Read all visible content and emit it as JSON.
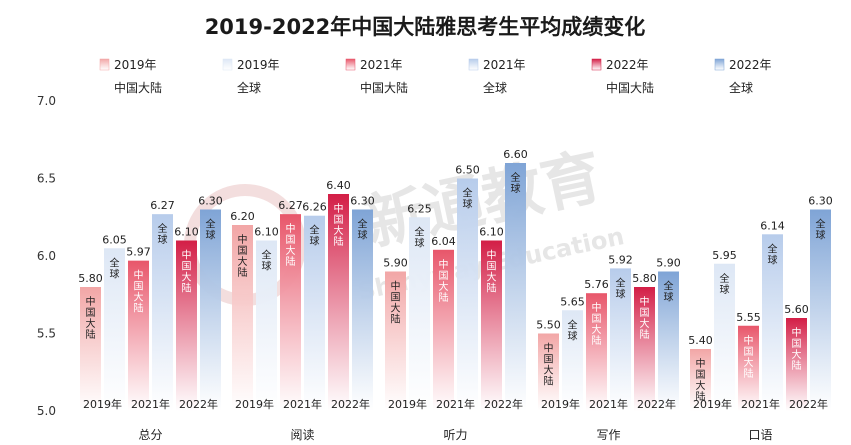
{
  "chart_data": {
    "type": "bar",
    "title": "2019-2022年中国大陆雅思考生平均成绩变化",
    "categories": [
      "总分",
      "阅读",
      "听力",
      "写作",
      "口语"
    ],
    "year_labels": [
      "2019年",
      "2021年",
      "2022年"
    ],
    "series": [
      {
        "name": "2019年 中国大陆",
        "legend_year": "2019年",
        "legend_region": "中国大陆",
        "bar_label": "中国大陆",
        "year": "2019年",
        "group": "china",
        "color": "#f2a6a6",
        "values": [
          5.8,
          6.2,
          5.9,
          5.5,
          5.4
        ]
      },
      {
        "name": "2019年 全球",
        "legend_year": "2019年",
        "legend_region": "全球",
        "bar_label": "全球",
        "year": "2019年",
        "group": "global",
        "color": "#dde7f5",
        "values": [
          6.05,
          6.1,
          6.25,
          5.65,
          5.95
        ]
      },
      {
        "name": "2021年 中国大陆",
        "legend_year": "2021年",
        "legend_region": "中国大陆",
        "bar_label": "中国大陆",
        "year": "2021年",
        "group": "china",
        "color": "#e8566a",
        "values": [
          5.97,
          6.27,
          6.04,
          5.76,
          5.55
        ]
      },
      {
        "name": "2021年 全球",
        "legend_year": "2021年",
        "legend_region": "全球",
        "bar_label": "全球",
        "year": "2021年",
        "group": "global",
        "color": "#b7cceb",
        "values": [
          6.27,
          6.26,
          6.5,
          5.92,
          6.14
        ]
      },
      {
        "name": "2022年 中国大陆",
        "legend_year": "2022年",
        "legend_region": "中国大陆",
        "bar_label": "中国大陆",
        "year": "2022年",
        "group": "china",
        "color": "#d31e46",
        "values": [
          6.1,
          6.4,
          6.1,
          5.8,
          5.6
        ]
      },
      {
        "name": "2022年 全球",
        "legend_year": "2022年",
        "legend_region": "全球",
        "bar_label": "全球",
        "year": "2022年",
        "group": "global",
        "color": "#7fa4d6",
        "values": [
          6.3,
          6.3,
          6.6,
          5.9,
          6.3
        ]
      }
    ],
    "ylim": [
      5.0,
      7.0
    ],
    "yticks": [
      5.0,
      5.5,
      6.0,
      6.5,
      7.0
    ],
    "grid": false,
    "legend": "top",
    "watermark": {
      "text": "新通教育",
      "subtext": "Shinyway Education"
    }
  }
}
